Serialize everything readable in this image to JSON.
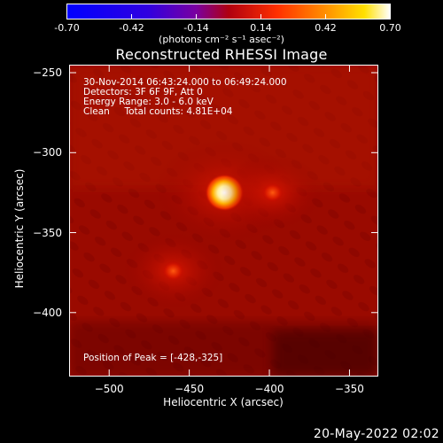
{
  "colorbar": {
    "tick_labels": [
      "-0.70",
      "-0.42",
      "-0.14",
      "0.14",
      "0.42",
      "0.70"
    ],
    "range": [
      -0.7,
      0.7
    ],
    "units_text": "(photons cm⁻² s⁻¹ asec⁻²)",
    "colormap": "red-temperature",
    "colors": [
      "#0000ff",
      "#7a00a0",
      "#b00000",
      "#ff5000",
      "#ffd000",
      "#ffffff"
    ]
  },
  "chart_data": {
    "type": "heatmap",
    "title": "Reconstructed RHESSI Image",
    "xlabel": "Heliocentric X (arcsec)",
    "ylabel": "Heliocentric Y (arcsec)",
    "xlim": [
      -525,
      -332
    ],
    "ylim": [
      -440,
      -245
    ],
    "x_ticks": [
      -500,
      -450,
      -400,
      -350
    ],
    "x_tick_labels": [
      "−500",
      "−450",
      "−400",
      "−350"
    ],
    "y_ticks": [
      -250,
      -300,
      -350,
      -400
    ],
    "y_tick_labels": [
      "−250",
      "−300",
      "−350",
      "−400"
    ],
    "sources": [
      {
        "x": -428,
        "y": -325,
        "relative_intensity": 1.0
      },
      {
        "x": -398,
        "y": -325,
        "relative_intensity": 0.45
      },
      {
        "x": -460,
        "y": -374,
        "relative_intensity": 0.5
      }
    ],
    "peak_position": [
      -428,
      -325
    ],
    "annotations": [
      "30-Nov-2014 06:43:24.000 to 06:49:24.000",
      "Detectors: 3F 6F 9F, Att 0",
      "Energy Range: 3.0 - 6.0 keV",
      "Clean     Total counts: 4.81E+04"
    ],
    "peak_text": "Position of Peak = [-428,-325]"
  },
  "footer": {
    "date": "20-May-2022 02:02"
  }
}
